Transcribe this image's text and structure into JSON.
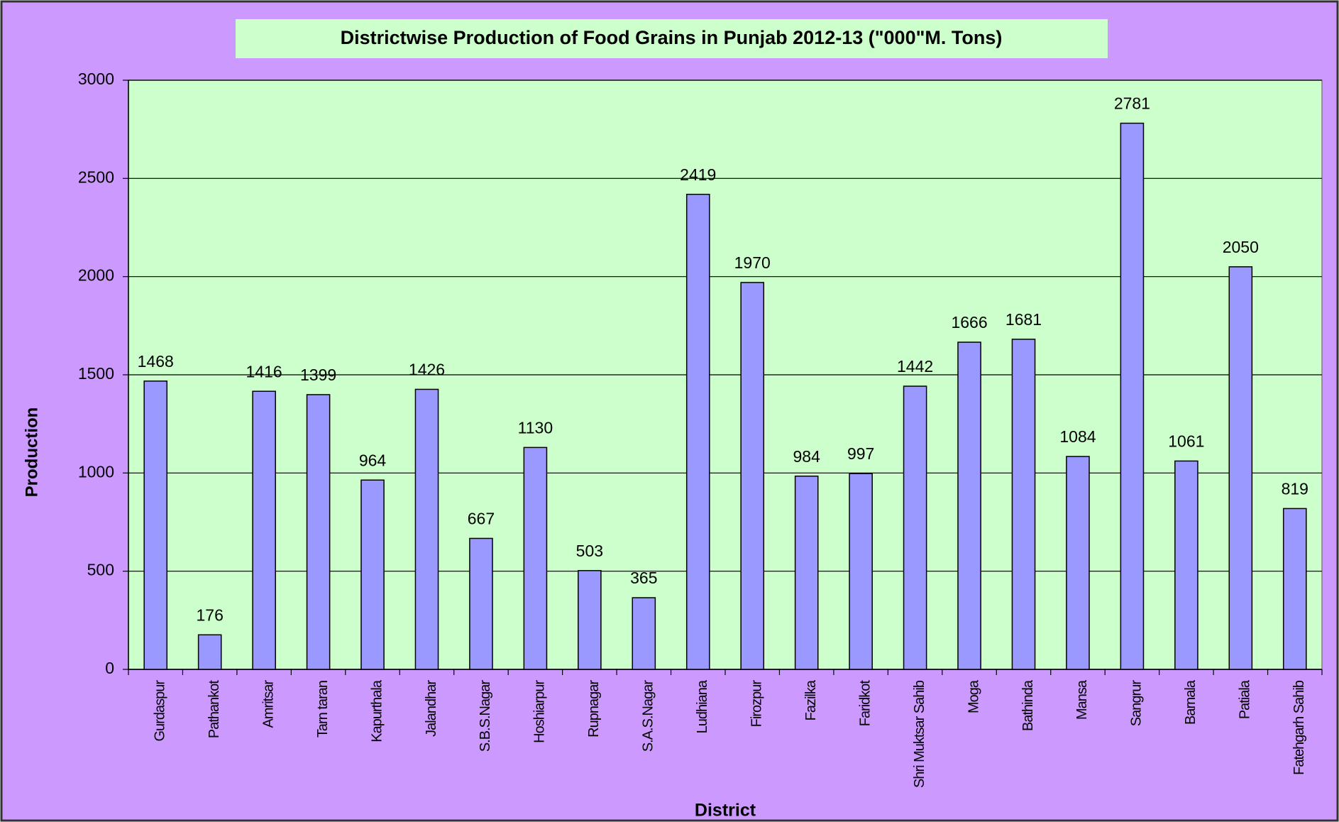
{
  "chart_data": {
    "type": "bar",
    "title": "Districtwise Production of Food Grains in Punjab 2012-13 (\"000\"M. Tons)",
    "x_label": "District",
    "y_label": "Production",
    "categories": [
      "Gurdaspur",
      "Pathankot",
      "Amritsar",
      "Tarn taran",
      "Kapurthala",
      "Jalandhar",
      "S.B.S.Nagar",
      "Hoshiarpur",
      "Rupnagar",
      "S.A.S.Nagar",
      "Ludhiana",
      "Firozpur",
      "Fazilka",
      "Faridkot",
      "Shri Muktsar Sahib",
      "Moga",
      "Bathinda",
      "Mansa",
      "Sangrur",
      "Barnala",
      "Patiala",
      "Fatehgarh Sahib"
    ],
    "values": [
      1468,
      176,
      1416,
      1399,
      964,
      1426,
      667,
      1130,
      503,
      365,
      2419,
      1970,
      984,
      997,
      1442,
      1666,
      1681,
      1084,
      2781,
      1061,
      2050,
      819
    ],
    "color": "#9999ff",
    "ylim": [
      0,
      3000
    ],
    "yticks": [
      0,
      500,
      1000,
      1500,
      2000,
      2500,
      3000
    ],
    "grid": true
  }
}
